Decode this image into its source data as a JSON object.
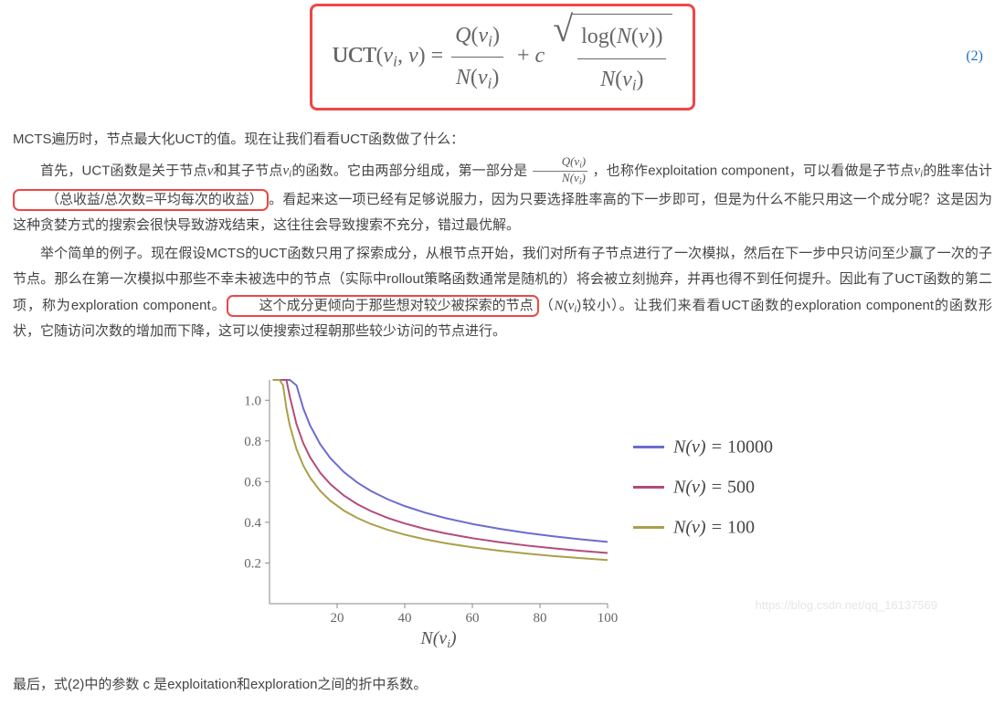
{
  "equation": {
    "label": "UCT",
    "number": "(2)"
  },
  "paragraphs": {
    "intro": "MCTS遍历时，节点最大化UCT的值。现在让我们看看UCT函数做了什么：",
    "p1_a": "首先，UCT函数是关于节点",
    "p1_b": "和其子节点",
    "p1_c": "的函数。它由两部分组成，第一部分是 ",
    "p1_d": " ，也称作exploitation component，可以看做是子节点",
    "p1_e": "的胜率估计",
    "hl1": "（总收益/总次数=平均每次的收益）",
    "p1_f": "。看起来这一项已经有足够说服力，因为只要选择胜率高的下一步即可，但是为什么不能只用这一个成分呢？这是因为这种贪婪方式的搜索会很快导致游戏结束，这往往会导致搜索不充分，错过最优解。",
    "p2_a": "举个简单的例子。现在假设MCTS的UCT函数只用了探索成分，从根节点开始，我们对所有子节点进行了一次模拟，然后在下一步中只访问至少赢了一次的子节点。那么在第一次模拟中那些不幸未被选中的节点（实际中rollout策略函数通常是随机的）将会被立刻抛弃，并再也得不到任何提升。因此有了UCT函数的第二项，称为exploration component。",
    "hl2": "这个成分更倾向于那些想对较少被探索的节点",
    "p2_b": "（",
    "p2_c": "较小）。让我们来看看UCT函数的exploration component的函数形状，它随访问次数的增加而下降，这可以使搜索过程朝那些较少访问的节点进行。",
    "last": "最后，式(2)中的参数 c 是exploitation和exploration之间的折中系数。"
  },
  "chart": {
    "type": "line",
    "x_label": "N(v_i)",
    "xlim": [
      0,
      100
    ],
    "ylim": [
      0,
      1.1
    ],
    "x_ticks": [
      20,
      40,
      60,
      80,
      100
    ],
    "y_ticks": [
      0.2,
      0.4,
      0.6,
      0.8,
      1.0
    ],
    "colors": {
      "axis": "#888888",
      "series1": "#6c6cd0",
      "series2": "#b34b7a",
      "series3": "#a9a04a",
      "text": "#555555",
      "background": "#ffffff"
    },
    "line_width": 2,
    "series": [
      {
        "label": "N(v) = 10000",
        "N": 10000,
        "color": "#6c6cd0"
      },
      {
        "label": "N(v) = 500",
        "N": 500,
        "color": "#b34b7a"
      },
      {
        "label": "N(v) = 100",
        "N": 100,
        "color": "#a9a04a"
      }
    ],
    "x_samples": [
      1,
      2,
      3,
      4,
      5,
      6,
      8,
      10,
      12,
      15,
      18,
      22,
      26,
      30,
      35,
      40,
      46,
      52,
      60,
      68,
      76,
      84,
      92,
      100
    ],
    "watermark": "https://blog.csdn.net/qq_16137569"
  }
}
